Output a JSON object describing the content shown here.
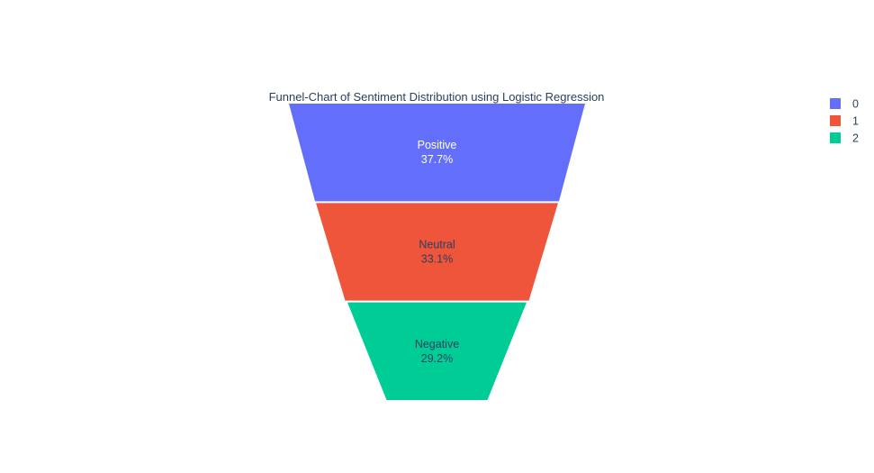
{
  "chart_data": {
    "type": "funnel",
    "title": "Funnel-Chart of Sentiment Distribution using Logistic Regression",
    "stages": [
      {
        "label": "Positive",
        "percent_text": "37.7%",
        "value": 37.7,
        "color": "#636efa",
        "text_color": "#ffffff",
        "legend": "0"
      },
      {
        "label": "Neutral",
        "percent_text": "33.1%",
        "value": 33.1,
        "color": "#ef553b",
        "text_color": "#2a3f5f",
        "legend": "1"
      },
      {
        "label": "Negative",
        "percent_text": "29.2%",
        "value": 29.2,
        "color": "#00cc96",
        "text_color": "#2a3f5f",
        "legend": "2"
      }
    ],
    "legend_placement": "top-right"
  }
}
